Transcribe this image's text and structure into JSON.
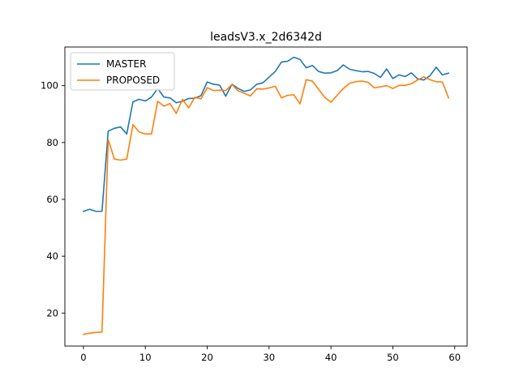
{
  "chart_data": {
    "type": "line",
    "title": "leadsV3.x_2d6342d",
    "xlabel": "",
    "ylabel": "",
    "xlim": [
      -3,
      62
    ],
    "ylim": [
      8.4,
      113.6
    ],
    "xticks": [
      0,
      10,
      20,
      30,
      40,
      50,
      60
    ],
    "yticks": [
      20,
      40,
      60,
      80,
      100
    ],
    "grid": false,
    "legend_position": "upper-left",
    "series": [
      {
        "name": "MASTER",
        "color": "#1f77b4",
        "x": [
          0,
          1,
          2,
          3,
          4,
          5,
          6,
          7,
          8,
          9,
          10,
          11,
          12,
          13,
          14,
          15,
          16,
          17,
          18,
          19,
          20,
          21,
          22,
          23,
          24,
          25,
          26,
          27,
          28,
          29,
          30,
          31,
          32,
          33,
          34,
          35,
          36,
          37,
          38,
          39,
          40,
          41,
          42,
          43,
          44,
          45,
          46,
          47,
          48,
          49,
          50,
          51,
          52,
          53,
          54,
          55,
          56,
          57,
          58,
          59
        ],
        "values": [
          55.8,
          56.5,
          55.8,
          55.8,
          84.0,
          85.0,
          85.5,
          83.0,
          94.3,
          95.2,
          94.6,
          96.0,
          99.0,
          96.0,
          95.7,
          94.0,
          94.5,
          95.5,
          95.6,
          96.5,
          101.3,
          100.5,
          100.2,
          96.3,
          100.5,
          99.0,
          98.0,
          98.5,
          100.5,
          101.0,
          103.0,
          105.0,
          108.3,
          108.6,
          110.0,
          109.2,
          106.3,
          107.1,
          105.0,
          104.4,
          104.5,
          105.3,
          107.3,
          105.8,
          105.3,
          104.9,
          105.0,
          104.3,
          102.9,
          105.9,
          102.5,
          103.8,
          103.2,
          104.5,
          102.4,
          102.0,
          103.5,
          106.5,
          103.8,
          104.4
        ]
      },
      {
        "name": "PROPOSED",
        "color": "#ff7f0e",
        "x": [
          0,
          1,
          2,
          3,
          4,
          5,
          6,
          7,
          8,
          9,
          10,
          11,
          12,
          13,
          14,
          15,
          16,
          17,
          18,
          19,
          20,
          21,
          22,
          23,
          24,
          25,
          26,
          27,
          28,
          29,
          30,
          31,
          32,
          33,
          34,
          35,
          36,
          37,
          38,
          39,
          40,
          41,
          42,
          43,
          44,
          45,
          46,
          47,
          48,
          49,
          50,
          51,
          52,
          53,
          54,
          55,
          56,
          57,
          58,
          59
        ],
        "values": [
          12.5,
          12.9,
          13.2,
          13.3,
          81.0,
          74.2,
          73.8,
          74.2,
          86.3,
          83.7,
          83.0,
          83.0,
          94.5,
          92.8,
          93.7,
          90.2,
          95.2,
          92.2,
          95.9,
          95.4,
          99.3,
          98.3,
          98.4,
          98.3,
          100.4,
          98.2,
          97.3,
          96.4,
          98.9,
          98.8,
          99.2,
          99.8,
          95.7,
          96.6,
          96.8,
          93.6,
          102.1,
          101.6,
          98.7,
          95.9,
          94.2,
          96.6,
          99.0,
          100.8,
          101.4,
          101.6,
          101.2,
          99.2,
          99.6,
          100.0,
          99.0,
          100.1,
          100.1,
          100.7,
          102.0,
          103.1,
          102.1,
          101.4,
          101.3,
          95.7
        ]
      }
    ]
  }
}
